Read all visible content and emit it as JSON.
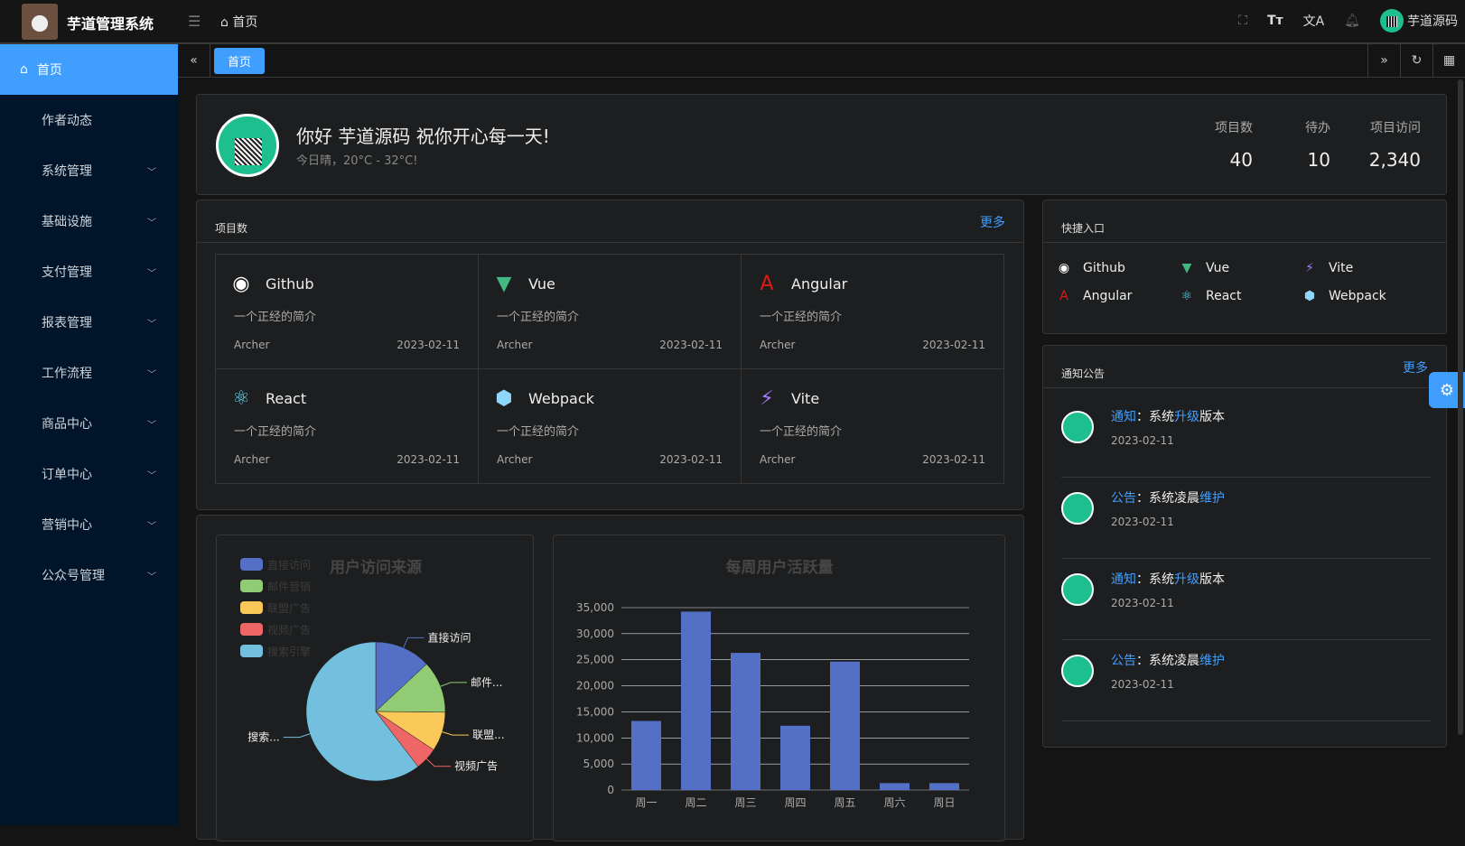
{
  "header": {
    "brand": "芋道管理系统",
    "breadcrumb": "首页",
    "username": "芋道源码"
  },
  "sidebar": {
    "items": [
      {
        "label": "首页",
        "active": true
      },
      {
        "label": "作者动态"
      },
      {
        "label": "系统管理",
        "sub": true
      },
      {
        "label": "基础设施",
        "sub": true
      },
      {
        "label": "支付管理",
        "sub": true
      },
      {
        "label": "报表管理",
        "sub": true
      },
      {
        "label": "工作流程",
        "sub": true
      },
      {
        "label": "商品中心",
        "sub": true
      },
      {
        "label": "订单中心",
        "sub": true
      },
      {
        "label": "营销中心",
        "sub": true
      },
      {
        "label": "公众号管理",
        "sub": true
      }
    ]
  },
  "tabs": [
    {
      "label": "首页"
    }
  ],
  "welcome": {
    "title": "你好 芋道源码 祝你开心每一天!",
    "subtitle": "今日晴，20°C - 32°C!",
    "stats": [
      {
        "label": "项目数",
        "value": "40"
      },
      {
        "label": "待办",
        "value": "10"
      },
      {
        "label": "项目访问",
        "value": "2,340"
      }
    ]
  },
  "projects": {
    "title": "项目数",
    "more": "更多",
    "items": [
      {
        "name": "Github",
        "desc": "一个正经的简介",
        "author": "Archer",
        "date": "2023-02-11",
        "icon": "github-icon",
        "color": "#ffffff"
      },
      {
        "name": "Vue",
        "desc": "一个正经的简介",
        "author": "Archer",
        "date": "2023-02-11",
        "icon": "vue-icon",
        "color": "#42b883"
      },
      {
        "name": "Angular",
        "desc": "一个正经的简介",
        "author": "Archer",
        "date": "2023-02-11",
        "icon": "angular-icon",
        "color": "#dd1b16"
      },
      {
        "name": "React",
        "desc": "一个正经的简介",
        "author": "Archer",
        "date": "2023-02-11",
        "icon": "react-icon",
        "color": "#61dafb"
      },
      {
        "name": "Webpack",
        "desc": "一个正经的简介",
        "author": "Archer",
        "date": "2023-02-11",
        "icon": "webpack-icon",
        "color": "#8ed6fb"
      },
      {
        "name": "Vite",
        "desc": "一个正经的简介",
        "author": "Archer",
        "date": "2023-02-11",
        "icon": "vite-icon",
        "color": "#a97bff"
      }
    ]
  },
  "shortcuts": {
    "title": "快捷入口",
    "items": [
      {
        "name": "Github"
      },
      {
        "name": "Vue"
      },
      {
        "name": "Vite"
      },
      {
        "name": "Angular"
      },
      {
        "name": "React"
      },
      {
        "name": "Webpack"
      }
    ]
  },
  "notices": {
    "title": "通知公告",
    "more": "更多",
    "items": [
      {
        "type": "通知",
        "sep": "：",
        "pre": "系统",
        "hl": "升级",
        "post": "版本",
        "date": "2023-02-11"
      },
      {
        "type": "公告",
        "sep": "：",
        "pre": "系统凌晨",
        "hl": "维护",
        "post": "",
        "date": "2023-02-11"
      },
      {
        "type": "通知",
        "sep": "：",
        "pre": "系统",
        "hl": "升级",
        "post": "版本",
        "date": "2023-02-11"
      },
      {
        "type": "公告",
        "sep": "：",
        "pre": "系统凌晨",
        "hl": "维护",
        "post": "",
        "date": "2023-02-11"
      }
    ]
  },
  "chart_data": [
    {
      "type": "pie",
      "title": "用户访问来源",
      "legend": "top-left",
      "categories": [
        "直接访问",
        "邮件营销",
        "联盟广告",
        "视频广告",
        "搜索引擎"
      ],
      "slice_labels": [
        "直接访问",
        "邮件...",
        "联盟...",
        "视频广告",
        "搜索..."
      ],
      "values": [
        335,
        310,
        234,
        135,
        1548
      ],
      "colors": [
        "#5470c6",
        "#91cc75",
        "#fac858",
        "#ee6666",
        "#73c0de"
      ]
    },
    {
      "type": "bar",
      "title": "每周用户活跃量",
      "categories": [
        "周一",
        "周二",
        "周三",
        "周四",
        "周五",
        "周六",
        "周日"
      ],
      "values": [
        13253,
        34235,
        26321,
        12340,
        24643,
        1322,
        1324
      ],
      "ylim": [
        0,
        35000
      ],
      "yticks": [
        "0",
        "5,000",
        "10,000",
        "15,000",
        "20,000",
        "25,000",
        "30,000",
        "35,000"
      ],
      "grid": true,
      "color": "#5470c6"
    }
  ]
}
